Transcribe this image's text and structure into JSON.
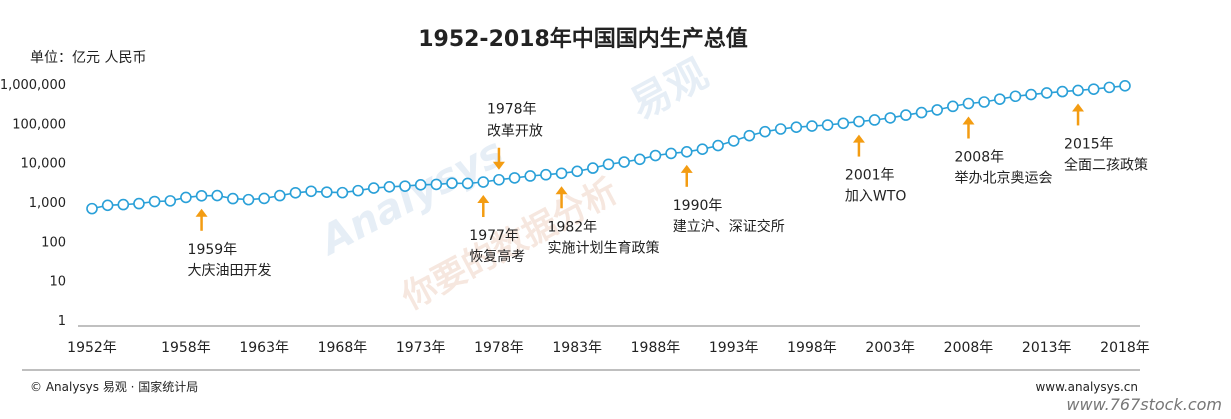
{
  "chart_data": {
    "type": "line",
    "title": "1952-2018年中国国内生产总值",
    "unit_label": "单位：亿元 人民币",
    "y_scale": "log",
    "ylim": [
      1,
      1000000
    ],
    "y_ticks": [
      "1",
      "10",
      "100",
      "1,000",
      "10,000",
      "100,000",
      "1,000,000"
    ],
    "x_ticks": [
      "1952年",
      "1958年",
      "1963年",
      "1968年",
      "1973年",
      "1978年",
      "1983年",
      "1988年",
      "1993年",
      "1998年",
      "2003年",
      "2008年",
      "2013年",
      "2018年"
    ],
    "x_tick_years": [
      1952,
      1958,
      1963,
      1968,
      1973,
      1978,
      1983,
      1988,
      1993,
      1998,
      2003,
      2008,
      2013,
      2018
    ],
    "series": [
      {
        "color": "#2aa0d8",
        "x": [
          1952,
          1953,
          1954,
          1955,
          1956,
          1957,
          1958,
          1959,
          1960,
          1961,
          1962,
          1963,
          1964,
          1965,
          1966,
          1967,
          1968,
          1969,
          1970,
          1971,
          1972,
          1973,
          1974,
          1975,
          1976,
          1977,
          1978,
          1979,
          1980,
          1981,
          1982,
          1983,
          1984,
          1985,
          1986,
          1987,
          1988,
          1989,
          1990,
          1991,
          1992,
          1993,
          1994,
          1995,
          1996,
          1997,
          1998,
          1999,
          2000,
          2001,
          2002,
          2003,
          2004,
          2005,
          2006,
          2007,
          2008,
          2009,
          2010,
          2011,
          2012,
          2013,
          2014,
          2015,
          2016,
          2017,
          2018
        ],
        "values": [
          679,
          824,
          859,
          910,
          1028,
          1068,
          1307,
          1439,
          1457,
          1220,
          1149,
          1233,
          1454,
          1717,
          1873,
          1780,
          1730,
          1945,
          2261,
          2435,
          2530,
          2733,
          2803,
          3013,
          2961,
          3221,
          3679,
          4100,
          4588,
          4936,
          5373,
          6021,
          7279,
          9099,
          10376,
          12175,
          15180,
          17180,
          18873,
          22006,
          27195,
          35673,
          48637,
          61340,
          71814,
          79715,
          85196,
          90564,
          100280,
          110863,
          121717,
          137422,
          161840,
          187319,
          219439,
          270092,
          319245,
          348518,
          412119,
          487940,
          538580,
          592963,
          641281,
          685993,
          740061,
          820754,
          900309
        ]
      }
    ],
    "annotations": [
      {
        "year": 1959,
        "position": "below",
        "year_label": "1959年",
        "event": "大庆油田开发"
      },
      {
        "year": 1977,
        "position": "below",
        "year_label": "1977年",
        "event": "恢复高考"
      },
      {
        "year": 1978,
        "position": "above",
        "year_label": "1978年",
        "event": "改革开放"
      },
      {
        "year": 1982,
        "position": "below",
        "year_label": "1982年",
        "event": "实施计划生育政策"
      },
      {
        "year": 1990,
        "position": "below",
        "year_label": "1990年",
        "event": "建立沪、深证交所"
      },
      {
        "year": 2001,
        "position": "below",
        "year_label": "2001年",
        "event": "加入WTO"
      },
      {
        "year": 2008,
        "position": "below",
        "year_label": "2008年",
        "event": "举办北京奥运会"
      },
      {
        "year": 2015,
        "position": "below",
        "year_label": "2015年",
        "event": "全面二孩政策"
      }
    ],
    "arrow_color": "#f39c12",
    "watermark": [
      "易观",
      "Analysys",
      "你要的数据分析"
    ]
  },
  "footer": {
    "source": "© Analysys 易观 · 国家统计局",
    "website": "www.analysys.cn",
    "stamp": "www.767stock.com"
  }
}
